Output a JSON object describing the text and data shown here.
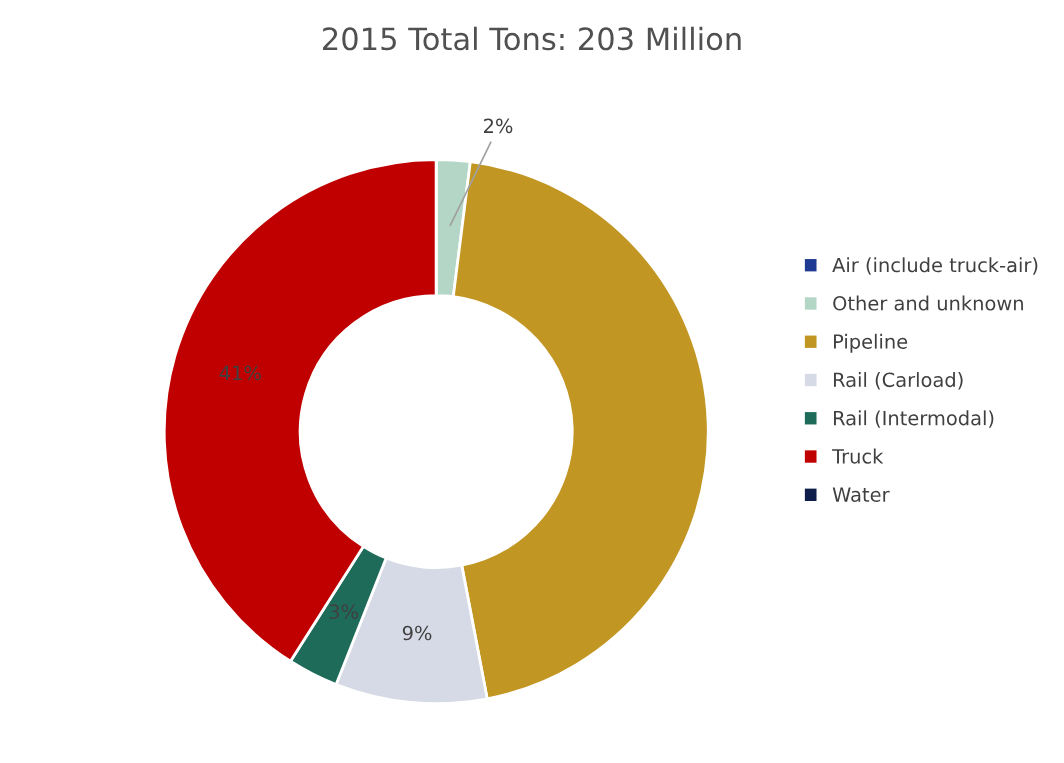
{
  "chart_data": {
    "type": "donut",
    "title": "2015 Total Tons: 203 Million",
    "categories": [
      "Air (include truck-air)",
      "Other and unknown",
      "Pipeline",
      "Rail (Carload)",
      "Rail (Intermodal)",
      "Truck",
      "Water"
    ],
    "values": [
      0,
      2,
      45,
      9,
      3,
      41,
      0
    ],
    "colors": [
      "#1f3a93",
      "#b4d6c6",
      "#c29622",
      "#d6dae6",
      "#1e6b5a",
      "#c00000",
      "#0f1d4a"
    ],
    "value_labels": [
      null,
      "2%",
      null,
      "9%",
      "3%",
      "41%",
      null
    ],
    "legend": "right"
  }
}
